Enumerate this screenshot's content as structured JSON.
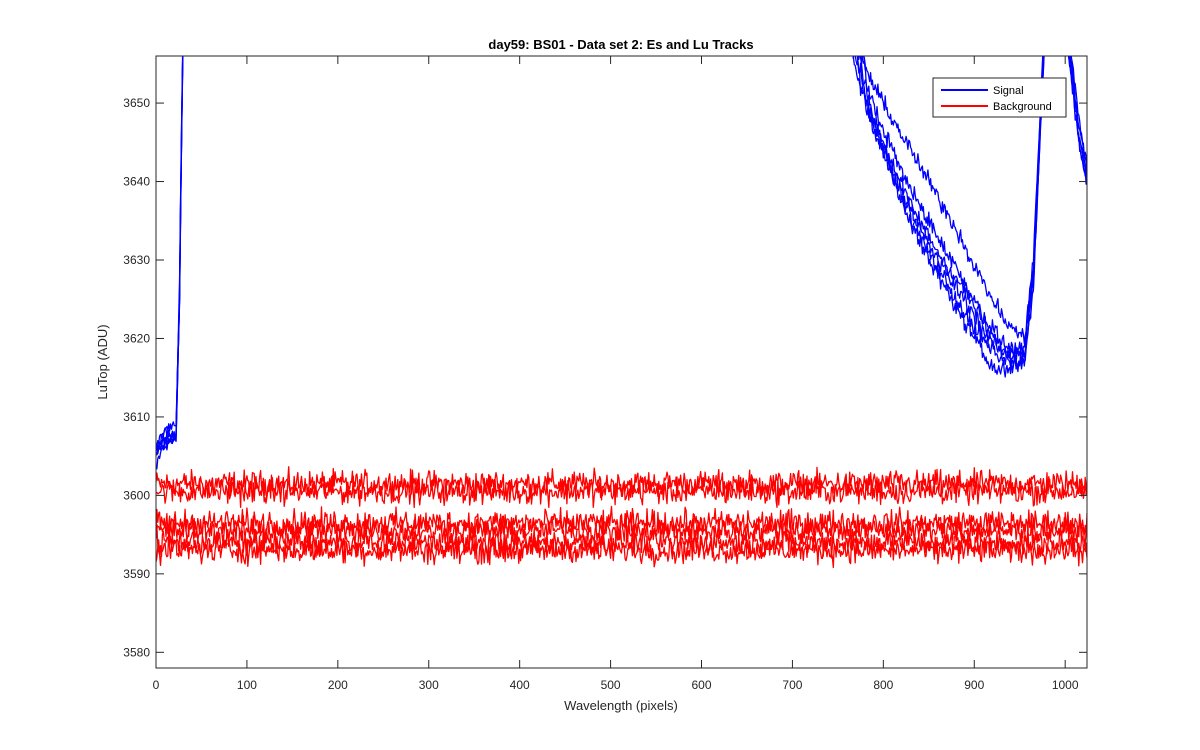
{
  "chart_data": {
    "type": "line",
    "title": "day59: BS01 - Data set 2: Es and Lu Tracks",
    "xlabel": "Wavelength (pixels)",
    "ylabel": "LuTop (ADU)",
    "xlim": [
      0,
      1024
    ],
    "ylim": [
      3578,
      3656
    ],
    "xticks": [
      0,
      100,
      200,
      300,
      400,
      500,
      600,
      700,
      800,
      900,
      1000
    ],
    "yticks": [
      3580,
      3590,
      3600,
      3610,
      3620,
      3630,
      3640,
      3650
    ],
    "legend_position": "top-right",
    "colors": {
      "signal": "#0000ff",
      "background": "#ff0000"
    },
    "series": [
      {
        "name": "Signal",
        "color": "#0000ff",
        "tracks": [
          {
            "x": [
              0,
              8,
              16,
              22,
              26,
              28,
              30,
              32,
              735,
              760,
              790,
              820,
              850,
              880,
              910,
              935,
              955,
              965,
              975,
              985,
              995,
              1005,
              1015,
              1024
            ],
            "y": [
              3606,
              3606,
              3607,
              3607,
              3625,
              3645,
              3660,
              3680,
              3680,
              3660,
              3652,
              3646,
              3640,
              3634,
              3627,
              3622,
              3620,
              3630,
              3655,
              3680,
              3670,
              3658,
              3648,
              3642
            ]
          },
          {
            "x": [
              0,
              8,
              16,
              22,
              26,
              28,
              30,
              32,
              740,
              765,
              795,
              825,
              855,
              885,
              915,
              935,
              955,
              965,
              975,
              985,
              995,
              1005,
              1015,
              1024
            ],
            "y": [
              3605,
              3607,
              3608,
              3608,
              3626,
              3646,
              3661,
              3680,
              3680,
              3657,
              3648,
              3640,
              3634,
              3628,
              3622,
              3619,
              3618,
              3628,
              3653,
              3680,
              3668,
              3656,
              3646,
              3641
            ]
          },
          {
            "x": [
              0,
              8,
              16,
              22,
              26,
              28,
              30,
              32,
              745,
              770,
              800,
              830,
              860,
              890,
              915,
              935,
              955,
              965,
              975,
              985,
              995,
              1005,
              1015,
              1024
            ],
            "y": [
              3604,
              3606,
              3607,
              3607,
              3625,
              3645,
              3660,
              3680,
              3680,
              3654,
              3645,
              3637,
              3631,
              3626,
              3621,
              3618,
              3617,
              3627,
              3652,
              3680,
              3667,
              3655,
              3645,
              3640
            ]
          },
          {
            "x": [
              0,
              8,
              16,
              22,
              26,
              28,
              30,
              32,
              750,
              775,
              805,
              835,
              865,
              895,
              915,
              935,
              955,
              965,
              975,
              985,
              995,
              1005,
              1015,
              1024
            ],
            "y": [
              3606,
              3608,
              3608,
              3608,
              3626,
              3646,
              3661,
              3680,
              3680,
              3652,
              3643,
              3635,
              3629,
              3624,
              3620,
              3618,
              3619,
              3629,
              3654,
              3680,
              3669,
              3657,
              3647,
              3642
            ]
          },
          {
            "x": [
              0,
              8,
              16,
              22,
              26,
              28,
              30,
              32,
              755,
              780,
              810,
              840,
              870,
              895,
              915,
              935,
              955,
              965,
              975,
              985,
              995,
              1005,
              1015,
              1024
            ],
            "y": [
              3605,
              3607,
              3607,
              3608,
              3625,
              3645,
              3660,
              3680,
              3680,
              3650,
              3641,
              3633,
              3627,
              3622,
              3619,
              3617,
              3618,
              3628,
              3653,
              3680,
              3668,
              3656,
              3646,
              3641
            ]
          },
          {
            "x": [
              0,
              8,
              16,
              22,
              26,
              28,
              30,
              32,
              760,
              785,
              815,
              845,
              875,
              900,
              915,
              935,
              955,
              965,
              975,
              985,
              995,
              1005,
              1015,
              1024
            ],
            "y": [
              3606,
              3608,
              3609,
              3609,
              3627,
              3647,
              3662,
              3680,
              3680,
              3648,
              3639,
              3631,
              3625,
              3620,
              3617,
              3616,
              3617,
              3627,
              3652,
              3680,
              3667,
              3655,
              3645,
              3640
            ]
          }
        ]
      },
      {
        "name": "Background",
        "color": "#ff0000",
        "tracks": [
          {
            "x": [
              0,
              1024
            ],
            "y": [
              3601.5,
              3601.5
            ]
          },
          {
            "x": [
              0,
              1024
            ],
            "y": [
              3600.5,
              3600.5
            ]
          },
          {
            "x": [
              0,
              1024
            ],
            "y": [
              3596.5,
              3596.5
            ]
          },
          {
            "x": [
              0,
              1024
            ],
            "y": [
              3595.5,
              3595.5
            ]
          },
          {
            "x": [
              0,
              1024
            ],
            "y": [
              3594.0,
              3594.0
            ]
          },
          {
            "x": [
              0,
              1024
            ],
            "y": [
              3593.0,
              3593.0
            ]
          }
        ]
      }
    ]
  }
}
